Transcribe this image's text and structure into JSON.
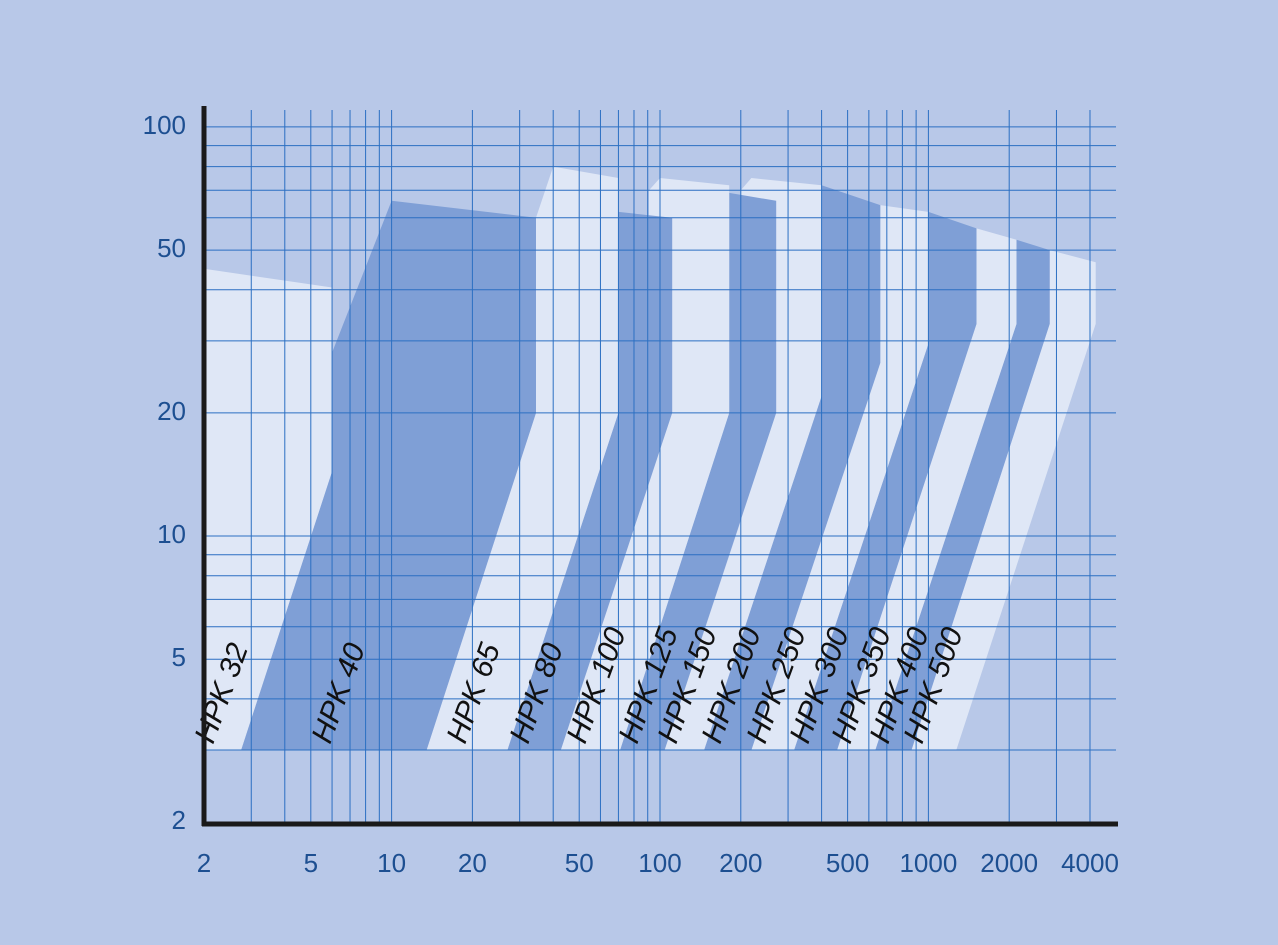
{
  "chart_data": {
    "type": "area-polygons",
    "log_x": true,
    "log_y": true,
    "grid": true,
    "xlim": [
      2,
      5000
    ],
    "ylim": [
      2,
      110
    ],
    "xticks": [
      2,
      5,
      10,
      20,
      50,
      100,
      200,
      500,
      1000,
      2000,
      4000
    ],
    "xminor": [
      3,
      4,
      6,
      7,
      8,
      9,
      30,
      40,
      60,
      70,
      80,
      90,
      300,
      400,
      600,
      700,
      800,
      900,
      3000
    ],
    "yticks": [
      2,
      5,
      10,
      20,
      50,
      100
    ],
    "yminor": [
      3,
      4,
      6,
      7,
      8,
      9,
      30,
      40,
      60,
      70,
      80,
      90
    ],
    "series": [
      {
        "name": "HPK 32",
        "color": "#dfe7f6",
        "x": [
          2,
          6,
          6,
          2.75,
          2
        ],
        "y": [
          45,
          40.5,
          14.4,
          3,
          3
        ]
      },
      {
        "name": "HPK 40",
        "color": "#7f9fd6",
        "x": [
          2.75,
          6,
          6,
          10,
          34.5,
          34.5,
          13.5
        ],
        "y": [
          3,
          14.4,
          28.1,
          66,
          60,
          20,
          3
        ]
      },
      {
        "name": "HPK 65",
        "color": "#dfe7f6",
        "x": [
          13.5,
          34.5,
          34.5,
          40,
          70,
          70,
          27
        ],
        "y": [
          3,
          20,
          60,
          80,
          75,
          20,
          3
        ]
      },
      {
        "name": "HPK 80",
        "color": "#7f9fd6",
        "x": [
          27,
          70,
          70,
          111,
          111,
          42.7
        ],
        "y": [
          3,
          20,
          62,
          60,
          20,
          3
        ]
      },
      {
        "name": "HPK 100",
        "color": "#dfe7f6",
        "x": [
          42.7,
          91,
          91,
          100,
          181,
          181,
          71
        ],
        "y": [
          3,
          13.6,
          70,
          75,
          72,
          20,
          3
        ]
      },
      {
        "name": "HPK 125",
        "color": "#7f9fd6",
        "x": [
          71,
          181,
          181,
          271,
          271,
          104
        ],
        "y": [
          3,
          20,
          69,
          66,
          20,
          3
        ]
      },
      {
        "name": "HPK 150",
        "color": "#dfe7f6",
        "x": [
          104,
          200,
          200,
          219,
          400,
          400,
          146
        ],
        "y": [
          3,
          10.9,
          70,
          75,
          72,
          22,
          3
        ]
      },
      {
        "name": "HPK 200",
        "color": "#7f9fd6",
        "x": [
          146,
          400,
          400,
          662,
          662,
          219
        ],
        "y": [
          3,
          22,
          72,
          64.4,
          26.5,
          3
        ]
      },
      {
        "name": "HPK 250",
        "color": "#dfe7f6",
        "x": [
          219,
          662,
          662,
          1000,
          1000,
          316
        ],
        "y": [
          3,
          26.5,
          64.4,
          62,
          29.5,
          3
        ]
      },
      {
        "name": "HPK 300",
        "color": "#7f9fd6",
        "x": [
          316,
          1000,
          1000,
          1511,
          1511,
          457
        ],
        "y": [
          3,
          29.5,
          62,
          56.5,
          33,
          3
        ]
      },
      {
        "name": "HPK 350",
        "color": "#dfe7f6",
        "x": [
          457,
          1511,
          1511,
          2130,
          2130,
          634
        ],
        "y": [
          3,
          33,
          56.5,
          53,
          33,
          3
        ]
      },
      {
        "name": "HPK 400",
        "color": "#7f9fd6",
        "x": [
          634,
          2130,
          2130,
          2830,
          2830,
          865
        ],
        "y": [
          3,
          33,
          53,
          50,
          33,
          3
        ]
      },
      {
        "name": "HPK 500",
        "color": "#dfe7f6",
        "x": [
          865,
          2830,
          2830,
          4200,
          4200,
          1270
        ],
        "y": [
          3,
          33,
          50,
          46.7,
          33,
          3
        ]
      }
    ]
  }
}
